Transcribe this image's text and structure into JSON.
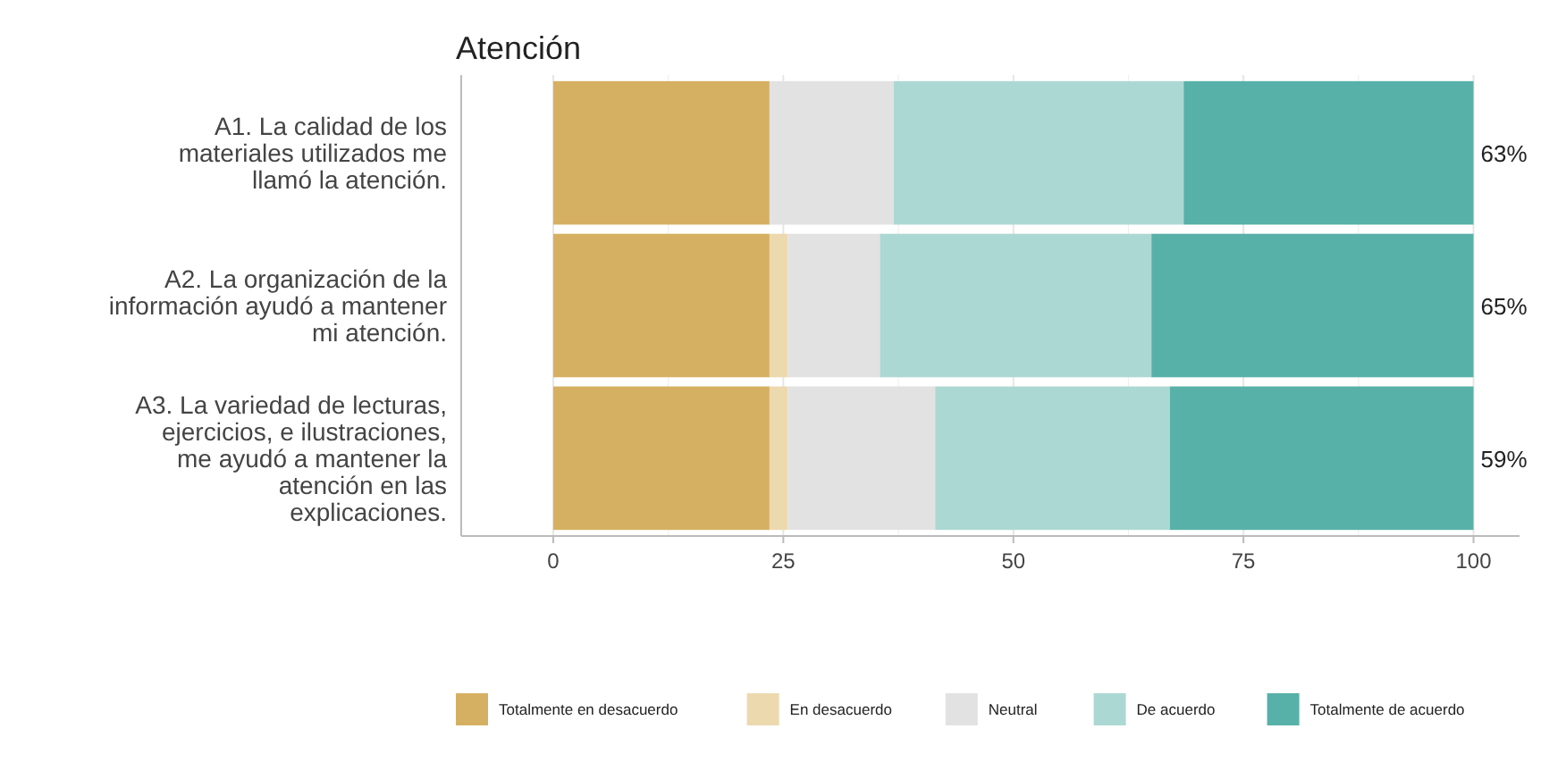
{
  "chart_data": {
    "type": "bar",
    "orientation": "horizontal",
    "stacked": true,
    "title": "Atención",
    "categories": [
      "A1. La calidad de los materiales utilizados me llamó la atención.",
      "A2. La organización de la información ayudó a mantener mi atención.",
      "A3. La variedad de lecturas, ejercicios, e ilustraciones, me ayudó a mantener la atención en las explicaciones."
    ],
    "series": [
      {
        "name": "Totalmente en desacuerdo",
        "color": "#d6b062",
        "values": [
          23.5,
          23.5,
          23.5
        ]
      },
      {
        "name": "En desacuerdo",
        "color": "#ecd9ae",
        "values": [
          0,
          2,
          2
        ]
      },
      {
        "name": "Neutral",
        "color": "#e2e2e2",
        "values": [
          13.5,
          10,
          16
        ]
      },
      {
        "name": "De acuerdo",
        "color": "#acd8d3",
        "values": [
          31.5,
          29.5,
          25.5
        ]
      },
      {
        "name": "Totalmente de acuerdo",
        "color": "#58b1a8",
        "values": [
          31.5,
          35,
          33
        ]
      }
    ],
    "xlim": [
      -10,
      105
    ],
    "xticks": [
      0,
      25,
      50,
      75,
      100
    ],
    "grid": "x",
    "legend": "bottom",
    "annotations": [
      "63%",
      "65%",
      "59%"
    ]
  }
}
